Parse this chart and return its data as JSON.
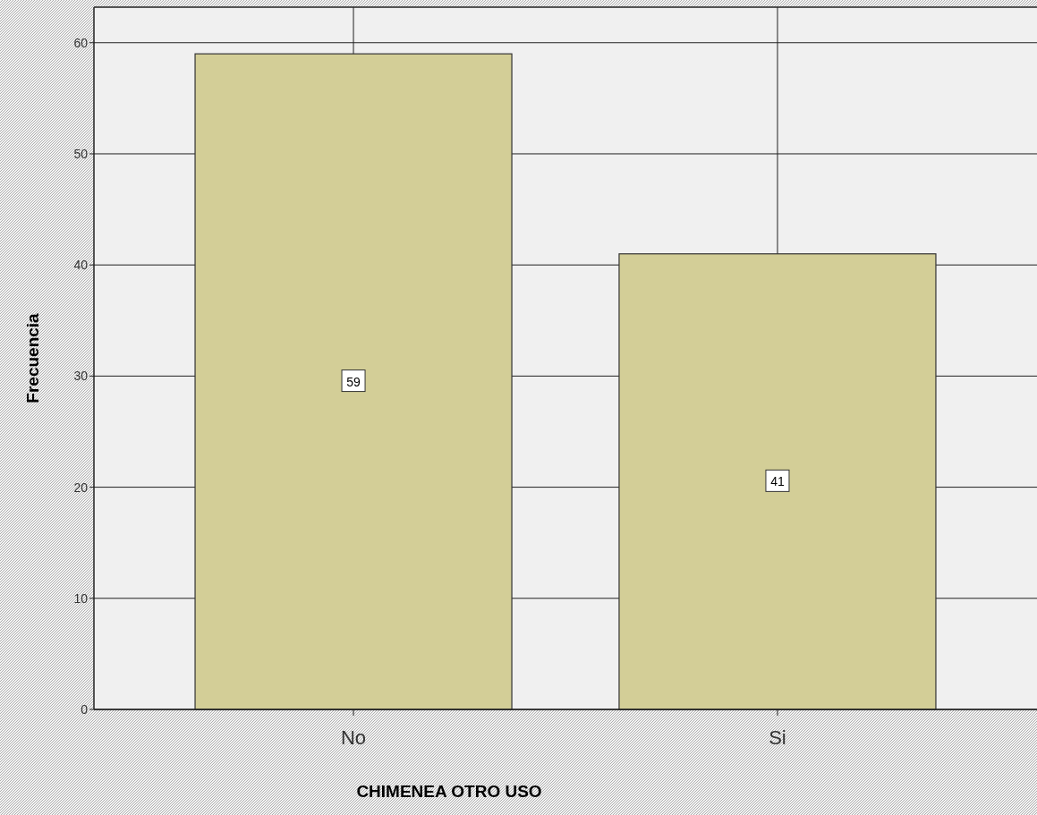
{
  "chart_data": {
    "type": "bar",
    "xlabel": "CHIMENEA OTRO USO",
    "ylabel": "Frecuencia",
    "categories": [
      "No",
      "Si"
    ],
    "values": [
      59,
      41
    ],
    "color": "#d3ce97",
    "ylim": [
      0,
      63.2
    ],
    "yticks": [
      0,
      10,
      20,
      30,
      40,
      50,
      60
    ],
    "grid": true,
    "data_labels": true
  }
}
